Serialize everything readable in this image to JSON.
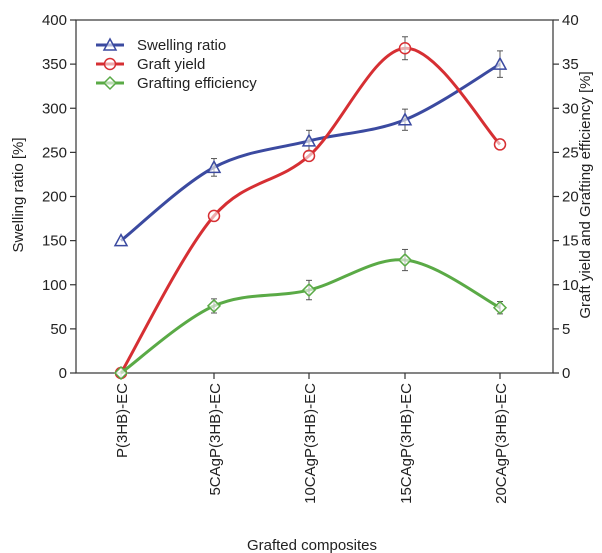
{
  "chart_data": {
    "type": "line",
    "title": "",
    "xlabel": "Grafted composites",
    "ylabel_left": "Swelling ratio [%]",
    "ylabel_right": "Graft yield and Grafting efficiency [%]",
    "ylim_left": [
      0,
      400
    ],
    "ylim_right": [
      0,
      40
    ],
    "yticks_left": [
      0,
      50,
      100,
      150,
      200,
      250,
      300,
      350,
      400
    ],
    "yticks_right": [
      0,
      5,
      10,
      15,
      20,
      25,
      30,
      35,
      40
    ],
    "categories": [
      "P(3HB)-EC",
      "5CAgP(3HB)-EC",
      "10CAgP(3HB)-EC",
      "15CAgP(3HB)-EC",
      "20CAgP(3HB)-EC"
    ],
    "legend_position": "top-left",
    "grid": false,
    "series": [
      {
        "name": "Swelling ratio",
        "axis": "left",
        "color": "#3b4aa0",
        "marker": "triangle",
        "values": [
          150,
          233,
          263,
          287,
          350
        ],
        "errors": [
          0,
          10,
          12,
          12,
          15
        ]
      },
      {
        "name": "Graft yield",
        "axis": "right",
        "color": "#d62f33",
        "marker": "circle",
        "values": [
          0,
          17.8,
          24.6,
          36.8,
          25.9
        ],
        "errors": [
          0,
          0,
          0,
          1.3,
          0
        ]
      },
      {
        "name": "Grafting efficiency",
        "axis": "right",
        "color": "#5aaa46",
        "marker": "diamond",
        "values": [
          0,
          7.6,
          9.4,
          12.8,
          7.4
        ],
        "errors": [
          0,
          0.8,
          1.1,
          1.2,
          0.7
        ]
      }
    ]
  }
}
